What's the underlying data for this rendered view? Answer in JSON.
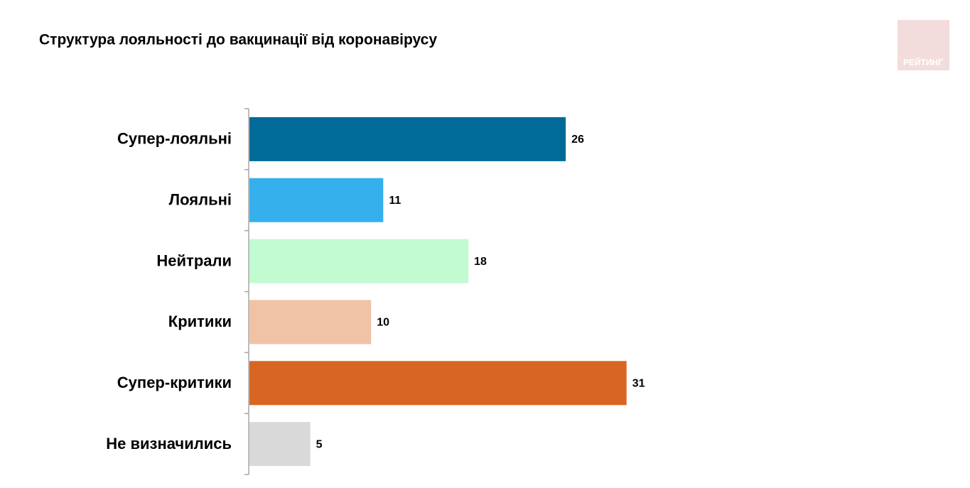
{
  "chart_data": {
    "type": "barh",
    "title": "Структура лояльності до вакцинації від коронавірусу",
    "logo": "РЕЙТИНГ",
    "categories": [
      "Супер-лояльні",
      "Лояльні",
      "Нейтрали",
      "Критики",
      "Супер-критики",
      "Не визначились"
    ],
    "values": [
      26,
      11,
      18,
      10,
      31,
      5
    ],
    "colors": [
      "#006b98",
      "#36b0ec",
      "#c2fbd1",
      "#f0c2a6",
      "#d96522",
      "#d9d9d9"
    ],
    "xlim": [
      0,
      40
    ]
  }
}
